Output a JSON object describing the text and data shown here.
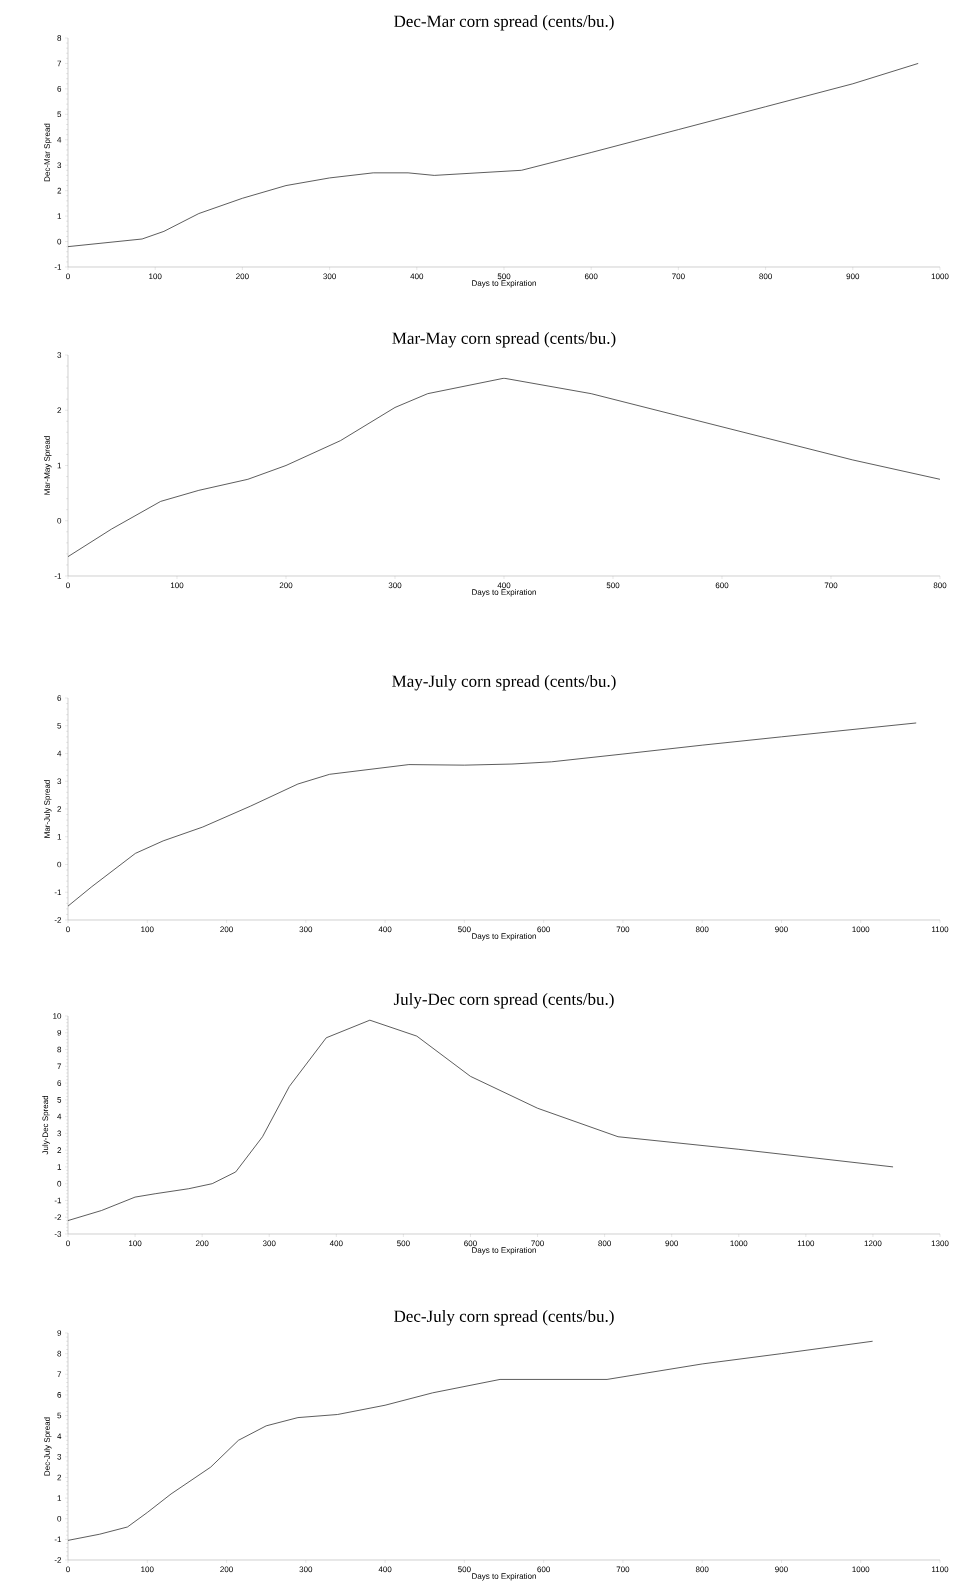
{
  "chart_data": [
    {
      "type": "line",
      "title": "Dec-Mar corn spread (cents/bu.)",
      "xlabel": "Days to Expiration",
      "ylabel": "Dec-Mar Spread",
      "color": "#333333",
      "xlim": [
        0,
        1000
      ],
      "xticks": [
        0,
        100,
        200,
        300,
        400,
        500,
        600,
        700,
        800,
        900,
        1000
      ],
      "ylim": [
        -1,
        8
      ],
      "yticks": [
        -1,
        0,
        1,
        2,
        3,
        4,
        5,
        6,
        7,
        8
      ],
      "grid": false,
      "marker": "none",
      "x": [
        0,
        85,
        110,
        150,
        200,
        250,
        300,
        350,
        390,
        420,
        470,
        520,
        600,
        700,
        800,
        900,
        975
      ],
      "values": [
        -0.2,
        0.1,
        0.4,
        1.1,
        1.7,
        2.2,
        2.5,
        2.7,
        2.7,
        2.6,
        2.7,
        2.8,
        3.5,
        4.4,
        5.3,
        6.2,
        7.0
      ]
    },
    {
      "type": "line",
      "title": "Mar-May corn spread (cents/bu.)",
      "xlabel": "Days to Expiration",
      "ylabel": "Mar-May Spread",
      "color": "#333333",
      "xlim": [
        0,
        800
      ],
      "xticks": [
        0,
        100,
        200,
        300,
        400,
        500,
        600,
        700,
        800
      ],
      "ylim": [
        -1,
        3
      ],
      "yticks": [
        -1,
        0,
        1,
        2,
        3
      ],
      "grid": false,
      "marker": "none",
      "x": [
        0,
        40,
        85,
        120,
        165,
        200,
        250,
        300,
        330,
        400,
        480,
        560,
        640,
        720,
        800
      ],
      "values": [
        -0.65,
        -0.15,
        0.35,
        0.55,
        0.75,
        1.0,
        1.45,
        2.05,
        2.3,
        2.58,
        2.3,
        1.9,
        1.5,
        1.1,
        0.75
      ]
    },
    {
      "type": "line",
      "title": "May-July corn spread (cents/bu.)",
      "xlabel": "Days to Expiration",
      "ylabel": "Mar-July Spread",
      "color": "#333333",
      "xlim": [
        0,
        1100
      ],
      "xticks": [
        0,
        100,
        200,
        300,
        400,
        500,
        600,
        700,
        800,
        900,
        1000,
        1100
      ],
      "ylim": [
        -2,
        6
      ],
      "yticks": [
        -2,
        -1,
        0,
        1,
        2,
        3,
        4,
        5,
        6
      ],
      "grid": false,
      "marker": "none",
      "x": [
        0,
        30,
        85,
        120,
        170,
        230,
        290,
        330,
        430,
        500,
        560,
        610,
        700,
        800,
        900,
        1070
      ],
      "values": [
        -1.5,
        -0.8,
        0.4,
        0.85,
        1.35,
        2.1,
        2.9,
        3.25,
        3.6,
        3.58,
        3.62,
        3.7,
        3.98,
        4.3,
        4.6,
        5.1
      ]
    },
    {
      "type": "line",
      "title": "July-Dec corn spread (cents/bu.)",
      "xlabel": "Days to Expiration",
      "ylabel": "July-Dec Spread",
      "color": "#333333",
      "xlim": [
        0,
        1300
      ],
      "xticks": [
        0,
        100,
        200,
        300,
        400,
        500,
        600,
        700,
        800,
        900,
        1000,
        1100,
        1200,
        1300
      ],
      "ylim": [
        -3,
        10
      ],
      "yticks": [
        -3,
        -2,
        -1,
        0,
        1,
        2,
        3,
        4,
        5,
        6,
        7,
        8,
        9,
        10
      ],
      "grid": false,
      "marker": "none",
      "x": [
        0,
        50,
        100,
        130,
        180,
        215,
        250,
        290,
        330,
        385,
        450,
        520,
        600,
        700,
        820,
        1000,
        1230
      ],
      "values": [
        -2.2,
        -1.6,
        -0.8,
        -0.6,
        -0.3,
        0.0,
        0.7,
        2.8,
        5.8,
        8.7,
        9.75,
        8.8,
        6.4,
        4.5,
        2.8,
        2.05,
        1.0
      ]
    },
    {
      "type": "line",
      "title": "Dec-July corn spread (cents/bu.)",
      "xlabel": "Days to Expiration",
      "ylabel": "Dec-July Spread",
      "color": "#333333",
      "xlim": [
        0,
        1100
      ],
      "xticks": [
        0,
        100,
        200,
        300,
        400,
        500,
        600,
        700,
        800,
        900,
        1000,
        1100
      ],
      "ylim": [
        -2,
        9
      ],
      "yticks": [
        -2,
        -1,
        0,
        1,
        2,
        3,
        4,
        5,
        6,
        7,
        8,
        9
      ],
      "grid": false,
      "marker": "none",
      "x": [
        0,
        40,
        75,
        100,
        130,
        180,
        215,
        250,
        290,
        340,
        400,
        460,
        545,
        600,
        680,
        800,
        900,
        1015
      ],
      "values": [
        -1.05,
        -0.75,
        -0.4,
        0.3,
        1.2,
        2.5,
        3.8,
        4.5,
        4.9,
        5.05,
        5.5,
        6.1,
        6.75,
        6.75,
        6.75,
        7.5,
        8.0,
        8.6
      ]
    }
  ]
}
